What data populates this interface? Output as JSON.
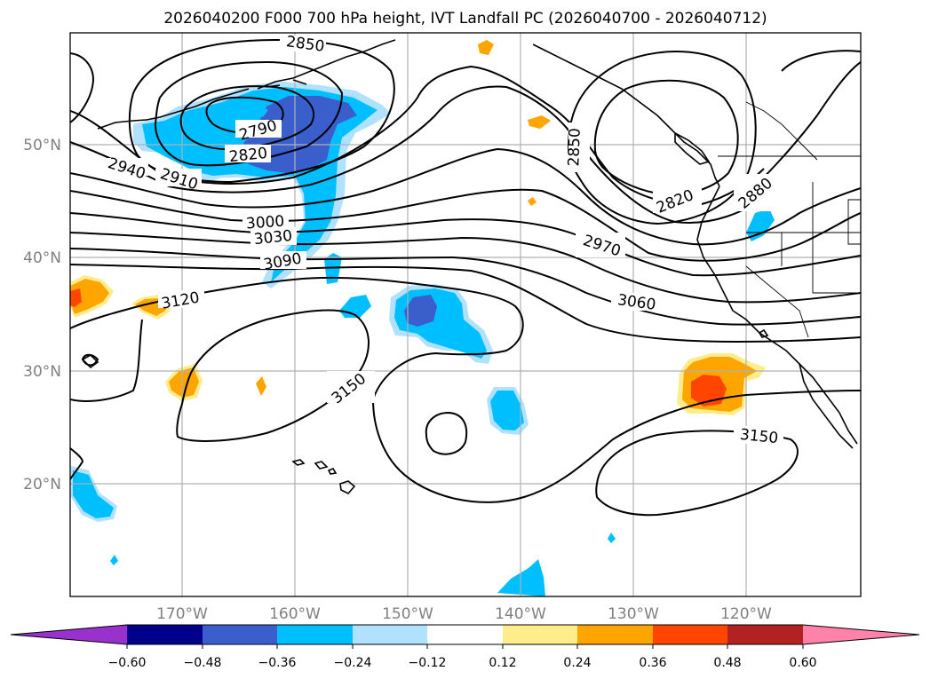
{
  "title": "2026040200 F000 700 hPa height, IVT Landfall PC (2026040700 - 2026040712)",
  "lat_labels": [
    "50°N",
    "40°N",
    "30°N",
    "20°N"
  ],
  "lon_labels": [
    "170°W",
    "160°W",
    "150°W",
    "140°W",
    "130°W",
    "120°W"
  ],
  "contour_labels": [
    "2850",
    "2790",
    "2820",
    "2940",
    "2910",
    "3000",
    "3030",
    "3090",
    "3120",
    "3150",
    "2850",
    "2820",
    "2880",
    "2970",
    "3060",
    "3150"
  ],
  "colorbar": {
    "ticks": [
      "−0.60",
      "−0.48",
      "−0.36",
      "−0.24",
      "−0.12",
      "0.12",
      "0.24",
      "0.36",
      "0.48",
      "0.60"
    ],
    "colors": {
      "under": "#9932cc",
      "c1": "#00008b",
      "c2": "#3a5fcd",
      "c3": "#00bfff",
      "c4": "#b0e2ff",
      "c5": "#ffffff",
      "c6": "#ffec8b",
      "c7": "#ffa500",
      "c8": "#ff4500",
      "c9": "#b22222",
      "over": "#ff82ab"
    }
  }
}
